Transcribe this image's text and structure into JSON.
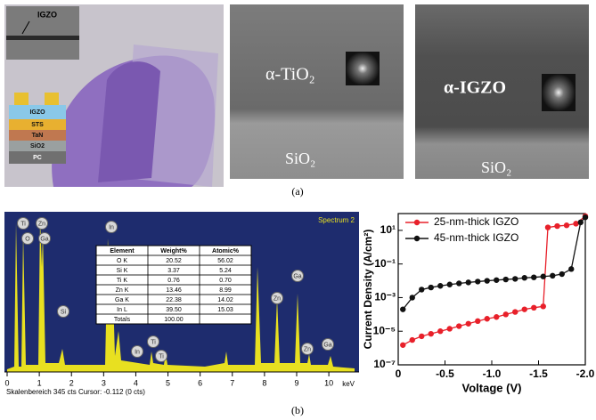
{
  "panel_a": {
    "inset_label": "IGZO",
    "stack_layers": [
      "IGZO",
      "STS",
      "TaN",
      "SiO2",
      "PC"
    ],
    "tem1_film": "α-TiO₂",
    "tem1_substrate": "SiO₂",
    "tem2_film": "α-IGZO",
    "tem2_substrate": "SiO₂",
    "caption": "(a)"
  },
  "panel_b": {
    "spectrum": {
      "title": "Spectrum 2",
      "xlim": [
        0,
        10.8
      ],
      "xticks": [
        0,
        1,
        2,
        3,
        4,
        5,
        6,
        7,
        8,
        9,
        10
      ],
      "unit": "keV",
      "footer": "Skalenbereich 345 cts Cursor: -0.112  (0 cts)",
      "peak_labels": [
        "Ti",
        "Zn",
        "O",
        "Ga",
        "In",
        "Si",
        "Zn",
        "Ga",
        "In",
        "Ti",
        "Ti",
        "Zn",
        "Ga"
      ]
    },
    "table": {
      "header": [
        "Element",
        "Weight%",
        "Atomic%"
      ],
      "rows": [
        [
          "O K",
          "20.52",
          "56.02"
        ],
        [
          "Si K",
          "3.37",
          "5.24"
        ],
        [
          "Ti K",
          "0.76",
          "0.70"
        ],
        [
          "Zn K",
          "13.46",
          "8.99"
        ],
        [
          "Ga K",
          "22.38",
          "14.02"
        ],
        [
          "In L",
          "39.50",
          "15.03"
        ],
        [
          "Totals",
          "100.00",
          ""
        ]
      ]
    },
    "caption": "(b)"
  },
  "chart_data": {
    "type": "line",
    "xlabel": "Voltage (V)",
    "ylabel": "Current Density (A/cm²)",
    "log_y": true,
    "legend": "upper left",
    "xlim": [
      0,
      -2.0
    ],
    "xticks": [
      0,
      -0.5,
      {
        "value": -1,
        "label": "-1.0"
      },
      -1.5,
      {
        "value": -2,
        "label": "-2.0"
      }
    ],
    "ylim": [
      1e-07,
      100
    ],
    "yticks": [
      {
        "value": 1e-07,
        "label": "10⁻⁷"
      },
      {
        "value": 1e-05,
        "label": "10⁻⁵"
      },
      {
        "value": 0.001,
        "label": "10⁻³"
      },
      {
        "value": 0.1,
        "label": "10⁻¹"
      },
      {
        "value": 10,
        "label": "10¹"
      }
    ],
    "series": [
      {
        "name": "25-nm-thick IGZO",
        "color": "#e8202a",
        "x": [
          -0.05,
          -0.15,
          -0.25,
          -0.35,
          -0.45,
          -0.55,
          -0.65,
          -0.75,
          -0.85,
          -0.95,
          -1.05,
          -1.15,
          -1.25,
          -1.35,
          -1.45,
          -1.55,
          -1.6,
          -1.7,
          -1.8,
          -1.9,
          -2.0
        ],
        "values": [
          1.5e-06,
          3e-06,
          5e-06,
          7e-06,
          1e-05,
          1.4e-05,
          2e-05,
          2.8e-05,
          4e-05,
          5.5e-05,
          7e-05,
          0.0001,
          0.00014,
          0.0002,
          0.00025,
          0.0003,
          15,
          18,
          20,
          25,
          70
        ]
      },
      {
        "name": "45-nm-thick IGZO",
        "color": "#111111",
        "x": [
          -0.05,
          -0.15,
          -0.25,
          -0.35,
          -0.45,
          -0.55,
          -0.65,
          -0.75,
          -0.85,
          -0.95,
          -1.05,
          -1.15,
          -1.25,
          -1.35,
          -1.45,
          -1.55,
          -1.65,
          -1.75,
          -1.85,
          -1.95,
          -2.0
        ],
        "values": [
          0.0002,
          0.001,
          0.003,
          0.004,
          0.005,
          0.006,
          0.007,
          0.008,
          0.009,
          0.01,
          0.011,
          0.012,
          0.013,
          0.015,
          0.016,
          0.018,
          0.02,
          0.025,
          0.05,
          30,
          60
        ]
      }
    ]
  }
}
